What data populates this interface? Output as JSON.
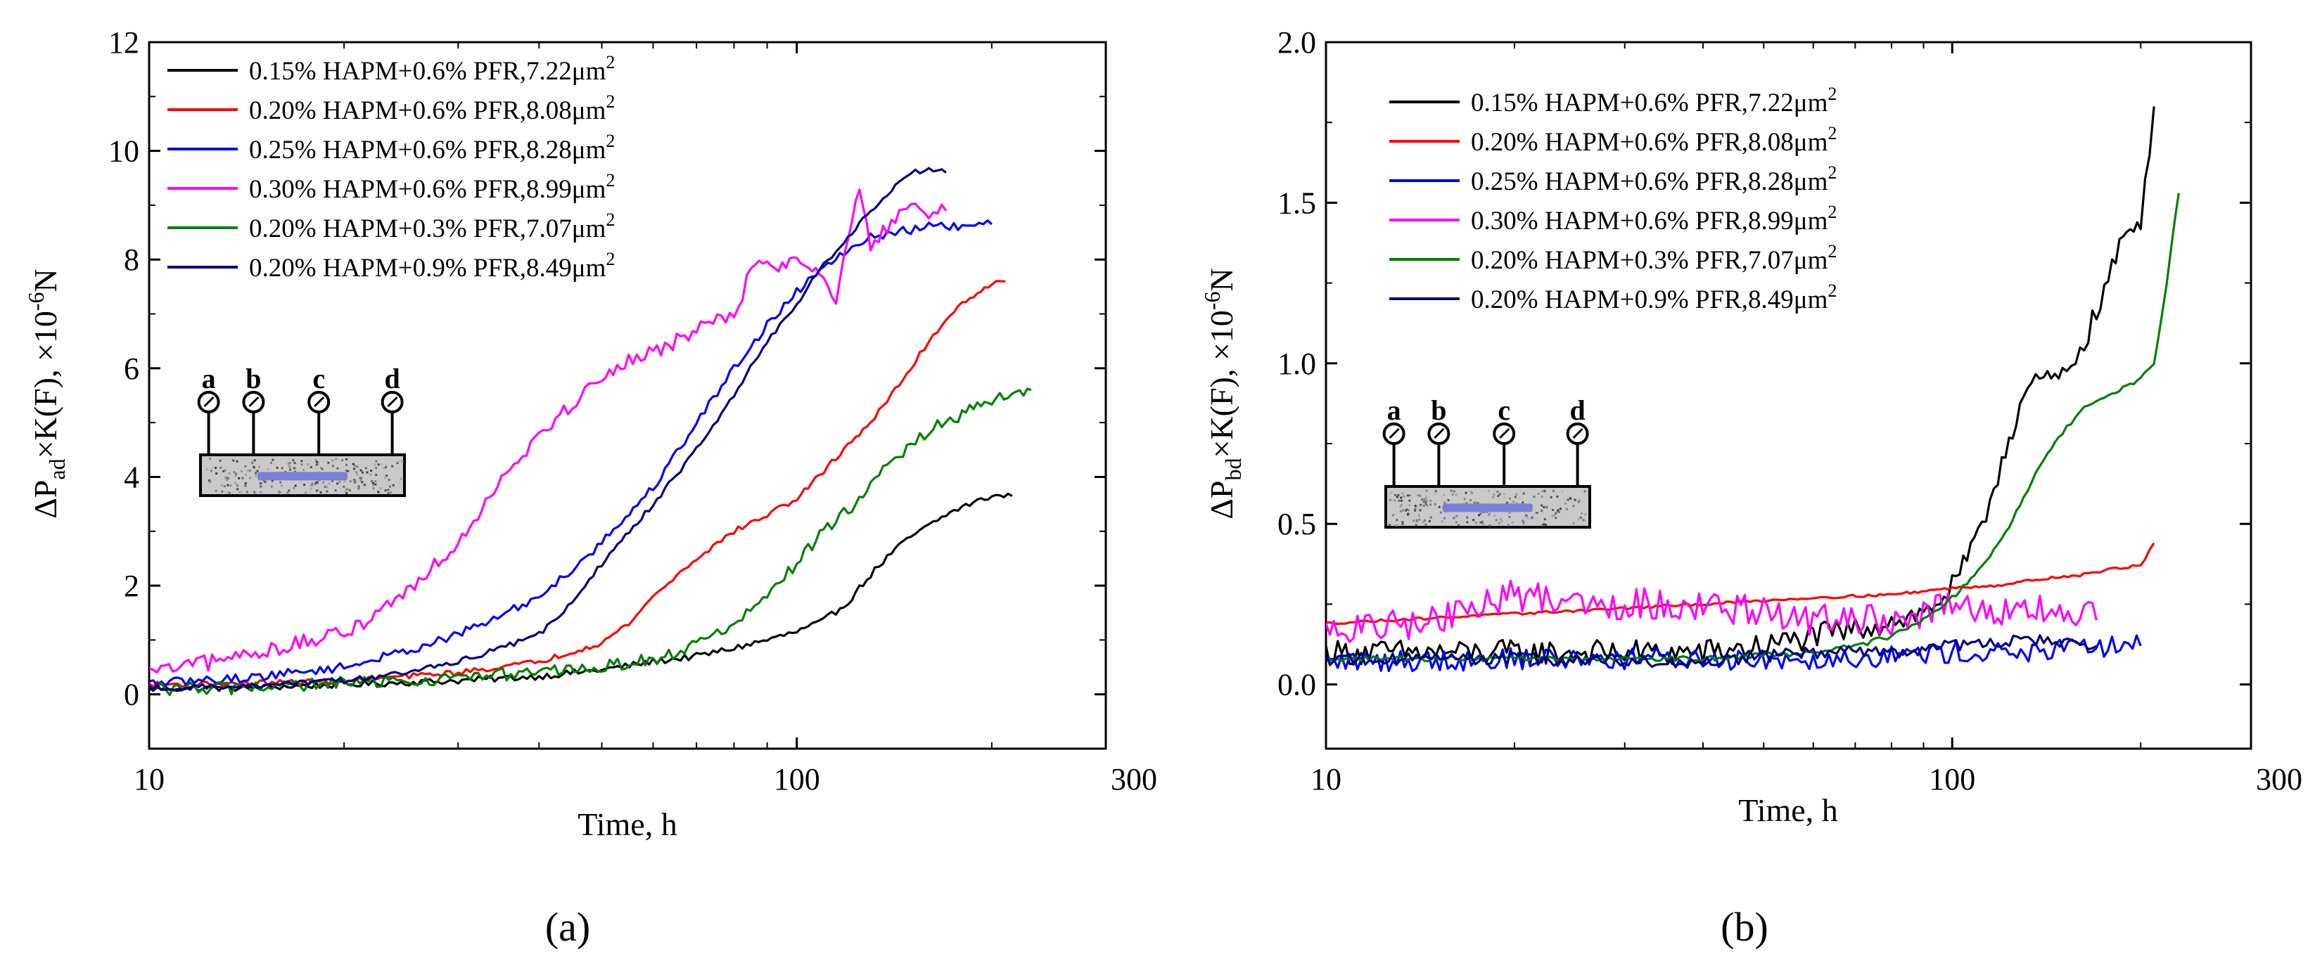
{
  "colors": {
    "c015_06": "#000000",
    "c020_06": "#ff0000",
    "c025_06": "#0000ff",
    "c030_06": "#ff00ff",
    "c020_03": "#008000",
    "c020_09": "#000080",
    "specimen_bar": "#7b7fd6"
  },
  "panels": {
    "a": {
      "label": "(a)"
    },
    "b": {
      "label": "(b)"
    }
  },
  "schematic": {
    "ports": [
      "a",
      "b",
      "c",
      "d"
    ]
  },
  "chart_data": [
    {
      "id": "a",
      "type": "line",
      "title": "",
      "xlabel": "Time, h",
      "ylabel_main": "ΔP",
      "ylabel_sub": "ad",
      "ylabel_mid": "×K(F), ×10",
      "ylabel_exp": "-6",
      "ylabel_end": "N",
      "xscale": "log",
      "xlim": [
        10,
        300
      ],
      "ylim": [
        -1,
        12
      ],
      "xticks": [
        10,
        100,
        300
      ],
      "xtick_labels": [
        "10",
        "100",
        "300"
      ],
      "yticks": [
        0,
        2,
        4,
        6,
        8,
        10,
        12
      ],
      "ytick_labels": [
        "0",
        "2",
        "4",
        "6",
        "8",
        "10",
        "12"
      ],
      "legend_position": "top-left",
      "series": [
        {
          "name": "0.15% HAPM+0.6% PFR,7.22μm",
          "sup": "2",
          "color_key": "c015_06",
          "x": [
            10,
            14,
            20,
            30,
            40,
            50,
            60,
            70,
            80,
            90,
            100,
            110,
            120,
            130,
            140,
            150,
            160,
            170,
            180,
            190,
            200,
            215
          ],
          "y": [
            0.1,
            0.12,
            0.18,
            0.25,
            0.33,
            0.45,
            0.6,
            0.7,
            0.85,
            1.0,
            1.15,
            1.35,
            1.7,
            2.2,
            2.6,
            2.9,
            3.1,
            3.3,
            3.45,
            3.55,
            3.65,
            3.65
          ],
          "noise": 0.06
        },
        {
          "name": "0.20% HAPM+0.6% PFR,8.08μm",
          "sup": "2",
          "color_key": "c020_06",
          "x": [
            10,
            14,
            20,
            30,
            40,
            50,
            55,
            60,
            70,
            80,
            90,
            100,
            110,
            120,
            130,
            140,
            150,
            160,
            170,
            180,
            190,
            200,
            210
          ],
          "y": [
            0.18,
            0.2,
            0.25,
            0.4,
            0.6,
            0.95,
            1.3,
            1.8,
            2.5,
            3.0,
            3.3,
            3.6,
            4.1,
            4.6,
            5.0,
            5.5,
            6.0,
            6.5,
            6.9,
            7.2,
            7.4,
            7.55,
            7.6
          ],
          "noise": 0.05
        },
        {
          "name": "0.25% HAPM+0.6% PFR,8.28μm",
          "sup": "2",
          "color_key": "c025_06",
          "x": [
            10,
            14,
            20,
            25,
            30,
            35,
            40,
            45,
            50,
            60,
            70,
            80,
            90,
            100,
            110,
            120,
            130,
            140,
            150,
            160,
            180,
            200
          ],
          "y": [
            0.2,
            0.3,
            0.5,
            0.8,
            1.1,
            1.45,
            1.8,
            2.3,
            2.8,
            3.8,
            5.0,
            6.0,
            6.8,
            7.4,
            7.9,
            8.2,
            8.4,
            8.5,
            8.55,
            8.6,
            8.6,
            8.65
          ],
          "noise": 0.08
        },
        {
          "name": "0.30% HAPM+0.6% PFR,8.99μm",
          "sup": "2",
          "color_key": "c030_06",
          "x": [
            10,
            12,
            15,
            20,
            25,
            30,
            35,
            40,
            45,
            50,
            55,
            60,
            70,
            80,
            85,
            90,
            95,
            100,
            110,
            115,
            120,
            125,
            130,
            140,
            150,
            160,
            170
          ],
          "y": [
            0.4,
            0.55,
            0.8,
            1.1,
            1.9,
            2.8,
            4.0,
            4.8,
            5.3,
            5.9,
            6.1,
            6.3,
            6.7,
            7.0,
            7.8,
            7.9,
            7.9,
            8.0,
            7.8,
            7.2,
            8.4,
            9.3,
            8.3,
            8.6,
            9.0,
            8.8,
            8.9
          ],
          "noise": 0.15
        },
        {
          "name": "0.20% HAPM+0.3% PFR,7.07μm",
          "sup": "2",
          "color_key": "c020_03",
          "x": [
            10,
            14,
            20,
            30,
            40,
            50,
            60,
            70,
            80,
            90,
            100,
            110,
            120,
            130,
            140,
            150,
            160,
            170,
            180,
            190,
            200,
            215,
            230
          ],
          "y": [
            0.1,
            0.12,
            0.2,
            0.3,
            0.4,
            0.5,
            0.65,
            0.9,
            1.3,
            1.8,
            2.4,
            3.0,
            3.4,
            3.8,
            4.3,
            4.6,
            4.85,
            5.0,
            5.15,
            5.3,
            5.4,
            5.5,
            5.6
          ],
          "noise": 0.12
        },
        {
          "name": "0.20% HAPM+0.9% PFR,8.49μm",
          "sup": "2",
          "color_key": "c020_09",
          "x": [
            10,
            14,
            20,
            25,
            30,
            35,
            40,
            45,
            50,
            60,
            70,
            80,
            90,
            100,
            110,
            120,
            130,
            140,
            150,
            160,
            170
          ],
          "y": [
            0.12,
            0.15,
            0.25,
            0.4,
            0.6,
            0.85,
            1.1,
            1.7,
            2.4,
            3.5,
            4.5,
            5.5,
            6.5,
            7.2,
            7.9,
            8.4,
            8.9,
            9.3,
            9.6,
            9.65,
            9.6
          ],
          "noise": 0.05
        }
      ]
    },
    {
      "id": "b",
      "type": "line",
      "title": "",
      "xlabel": "Time, h",
      "ylabel_main": "ΔP",
      "ylabel_sub": "bd",
      "ylabel_mid": "×K(F), ×10",
      "ylabel_exp": "-6",
      "ylabel_end": "N",
      "xscale": "log",
      "xlim": [
        10,
        300
      ],
      "ylim": [
        -0.2,
        2.0
      ],
      "xticks": [
        10,
        100,
        300
      ],
      "xtick_labels": [
        "10",
        "100",
        "300"
      ],
      "yticks": [
        0,
        0.5,
        1.0,
        1.5,
        2.0
      ],
      "ytick_labels": [
        "0.0",
        "0.5",
        "1.0",
        "1.5",
        "2.0"
      ],
      "legend_position": "top-left",
      "series": [
        {
          "name": "0.15% HAPM+0.6% PFR,7.22μm",
          "sup": "2",
          "color_key": "c015_06",
          "x": [
            10,
            20,
            40,
            50,
            60,
            70,
            80,
            90,
            100,
            110,
            120,
            130,
            140,
            150,
            160,
            170,
            180,
            190,
            200,
            210
          ],
          "y": [
            0.1,
            0.1,
            0.1,
            0.12,
            0.15,
            0.17,
            0.2,
            0.22,
            0.3,
            0.45,
            0.7,
            0.9,
            0.95,
            0.95,
            1.05,
            1.15,
            1.3,
            1.4,
            1.45,
            1.8
          ],
          "noise": 0.04
        },
        {
          "name": "0.20% HAPM+0.6% PFR,8.08μm",
          "sup": "2",
          "color_key": "c020_06",
          "x": [
            10,
            20,
            40,
            60,
            80,
            100,
            120,
            140,
            160,
            180,
            200,
            210
          ],
          "y": [
            0.19,
            0.22,
            0.25,
            0.27,
            0.28,
            0.3,
            0.31,
            0.33,
            0.34,
            0.36,
            0.37,
            0.44
          ],
          "noise": 0.004
        },
        {
          "name": "0.25% HAPM+0.6% PFR,8.28μm",
          "sup": "2",
          "color_key": "c025_06",
          "x": [
            10,
            20,
            40,
            60,
            80,
            100,
            120,
            140,
            160,
            180,
            200
          ],
          "y": [
            0.07,
            0.08,
            0.08,
            0.08,
            0.09,
            0.1,
            0.1,
            0.1,
            0.11,
            0.12,
            0.12
          ],
          "noise": 0.035
        },
        {
          "name": "0.30% HAPM+0.6% PFR,8.99μm",
          "sup": "2",
          "color_key": "c030_06",
          "x": [
            10,
            15,
            20,
            30,
            40,
            50,
            60,
            70,
            80,
            90,
            100,
            120,
            140,
            160,
            170
          ],
          "y": [
            0.16,
            0.2,
            0.28,
            0.25,
            0.25,
            0.22,
            0.2,
            0.2,
            0.2,
            0.22,
            0.24,
            0.22,
            0.23,
            0.22,
            0.2
          ],
          "noise": 0.05
        },
        {
          "name": "0.20% HAPM+0.3% PFR,7.07μm",
          "sup": "2",
          "color_key": "c020_03",
          "x": [
            10,
            20,
            40,
            60,
            70,
            80,
            90,
            100,
            110,
            120,
            130,
            140,
            150,
            160,
            170,
            180,
            190,
            200,
            210,
            220,
            230
          ],
          "y": [
            0.08,
            0.08,
            0.08,
            0.1,
            0.12,
            0.15,
            0.2,
            0.27,
            0.35,
            0.45,
            0.58,
            0.7,
            0.78,
            0.85,
            0.88,
            0.91,
            0.93,
            0.95,
            1.0,
            1.25,
            1.53
          ],
          "noise": 0.008
        },
        {
          "name": "0.20% HAPM+0.9% PFR,8.49μm",
          "sup": "2",
          "color_key": "c020_09",
          "x": [
            10,
            20,
            40,
            60,
            80,
            100,
            120,
            140,
            160,
            170
          ],
          "y": [
            0.08,
            0.08,
            0.07,
            0.1,
            0.1,
            0.12,
            0.13,
            0.14,
            0.12,
            0.12
          ],
          "noise": 0.02
        }
      ]
    }
  ]
}
